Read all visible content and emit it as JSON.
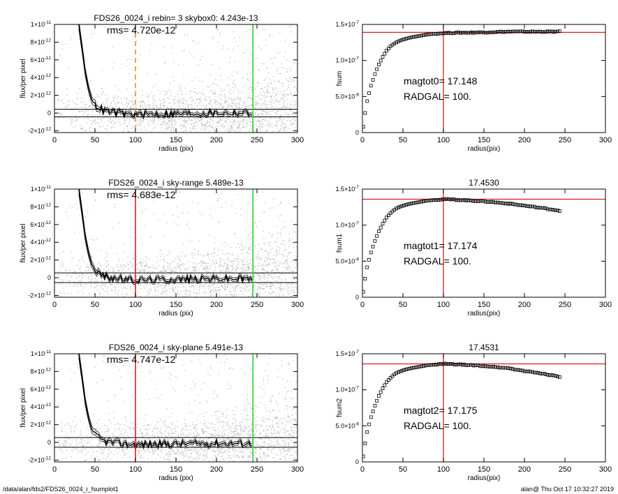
{
  "footer": {
    "path": "/data/alan/fds2/FDS26_0024_i_fsumplot1",
    "stamp": "alan@  Thu Oct 17 10:32:27 2019"
  },
  "colors": {
    "scatter": "#b3b3b3",
    "profile": "#000000",
    "orange": "#f28c28",
    "red": "#e41a1c",
    "green": "#2bd32b",
    "marker": "#000000"
  },
  "chart_data": [
    {
      "id": "flux-top",
      "type": "scatter",
      "title": "FDS26_0024_i rebin= 3    skybox0:  4.243e-13",
      "annotation": "rms= 4.720e-12",
      "xlabel": "radius (pix)",
      "ylabel": "flux/per pixel",
      "xlim": [
        0,
        300
      ],
      "ylim": [
        -2.2e-12,
        1e-11
      ],
      "xticks": [
        0,
        50,
        100,
        150,
        200,
        250,
        300
      ],
      "yticks": [
        {
          "v": 1e-11,
          "m": "1×10",
          "e": "-11"
        },
        {
          "v": 8e-12,
          "m": "8×10",
          "e": "-12"
        },
        {
          "v": 6e-12,
          "m": "6×10",
          "e": "-12"
        },
        {
          "v": 4e-12,
          "m": "4×10",
          "e": "-12"
        },
        {
          "v": 2e-12,
          "m": "2×10",
          "e": "-12"
        },
        {
          "v": 0,
          "m": "0",
          "e": ""
        },
        {
          "v": -2e-12,
          "m": "-2×10",
          "e": "-12"
        }
      ],
      "hlines": [
        4.243e-13,
        -4.243e-13
      ],
      "vlines": [
        {
          "x": 100,
          "color": "orange",
          "dash": true
        },
        {
          "x": 245,
          "color": "green",
          "dash": false
        }
      ],
      "profile": {
        "x": [
          30,
          34,
          38,
          42,
          46,
          50,
          55,
          60,
          70,
          80,
          90,
          100,
          120,
          150,
          200,
          245
        ],
        "y": [
          1e-11,
          7.4e-12,
          4.6e-12,
          2.8e-12,
          1.5e-12,
          9e-13,
          6e-13,
          3e-13,
          1e-13,
          0,
          -1e-13,
          -1.5e-13,
          -1e-13,
          -1e-13,
          0,
          0
        ]
      },
      "scatter_seed": 11
    },
    {
      "id": "fsum-top",
      "type": "scatter",
      "title": "",
      "annotation": "magtot0=  17.148",
      "annotation2": "RADGAL=    100.",
      "xlabel": "radius(pix)",
      "ylabel": "fsum",
      "xlim": [
        0,
        300
      ],
      "ylim": [
        0,
        1.5e-07
      ],
      "xticks": [
        0,
        50,
        100,
        150,
        200,
        250,
        300
      ],
      "yticks": [
        {
          "v": 1.5e-07,
          "m": "1.5×10",
          "e": "-7"
        },
        {
          "v": 1e-07,
          "m": "1.0×10",
          "e": "-7"
        },
        {
          "v": 5e-08,
          "m": "5.0×10",
          "e": "-8"
        },
        {
          "v": 0,
          "m": "0",
          "e": ""
        }
      ],
      "hline": 1.39e-07,
      "vline": 100,
      "curve": {
        "x": [
          0,
          5,
          10,
          15,
          20,
          25,
          30,
          35,
          40,
          45,
          50,
          60,
          70,
          80,
          90,
          100,
          120,
          150,
          180,
          200,
          220,
          245
        ],
        "y": [
          0,
          4e-08,
          6.3e-08,
          8e-08,
          9.4e-08,
          1.05e-07,
          1.14e-07,
          1.2e-07,
          1.24e-07,
          1.27e-07,
          1.29e-07,
          1.32e-07,
          1.34e-07,
          1.36e-07,
          1.37e-07,
          1.38e-07,
          1.385e-07,
          1.39e-07,
          1.4e-07,
          1.4e-07,
          1.4e-07,
          1.4e-07
        ]
      }
    },
    {
      "id": "flux-mid",
      "type": "scatter",
      "title": "FDS26_0024_i sky-range  5.489e-13",
      "annotation": "rms= 4.683e-12",
      "xlabel": "radius (pix)",
      "ylabel": "flux/per pixel",
      "xlim": [
        0,
        300
      ],
      "ylim": [
        -2.2e-12,
        1e-11
      ],
      "xticks": [
        0,
        50,
        100,
        150,
        200,
        250,
        300
      ],
      "yticks": [
        {
          "v": 1e-11,
          "m": "1×10",
          "e": "-11"
        },
        {
          "v": 8e-12,
          "m": "8×10",
          "e": "-12"
        },
        {
          "v": 6e-12,
          "m": "6×10",
          "e": "-12"
        },
        {
          "v": 4e-12,
          "m": "4×10",
          "e": "-12"
        },
        {
          "v": 2e-12,
          "m": "2×10",
          "e": "-12"
        },
        {
          "v": 0,
          "m": "0",
          "e": ""
        },
        {
          "v": -2e-12,
          "m": "-2×10",
          "e": "-12"
        }
      ],
      "hlines": [
        5.489e-13,
        -5.489e-13
      ],
      "vlines": [
        {
          "x": 100,
          "color": "red",
          "dash": false
        },
        {
          "x": 245,
          "color": "green",
          "dash": false
        }
      ],
      "profile": {
        "x": [
          30,
          34,
          38,
          42,
          46,
          50,
          55,
          60,
          70,
          80,
          90,
          100,
          120,
          150,
          200,
          245
        ],
        "y": [
          1e-11,
          7.4e-12,
          4.6e-12,
          2.8e-12,
          1.5e-12,
          9e-13,
          5e-13,
          2e-13,
          0,
          -1e-13,
          -2e-13,
          -2.5e-13,
          -2e-13,
          -1.5e-13,
          -1e-13,
          -1e-13
        ]
      },
      "scatter_seed": 23
    },
    {
      "id": "fsum-mid",
      "type": "scatter",
      "title": "17.4530",
      "annotation": "magtot1=  17.174",
      "annotation2": "RADGAL=    100.",
      "xlabel": "radius(pix)",
      "ylabel": "fsum1",
      "xlim": [
        0,
        300
      ],
      "ylim": [
        0,
        1.5e-07
      ],
      "xticks": [
        0,
        50,
        100,
        150,
        200,
        250,
        300
      ],
      "yticks": [
        {
          "v": 1.5e-07,
          "m": "1.5×10",
          "e": "-7"
        },
        {
          "v": 1e-07,
          "m": "1.0×10",
          "e": "-7"
        },
        {
          "v": 5e-08,
          "m": "5.0×10",
          "e": "-8"
        },
        {
          "v": 0,
          "m": "0",
          "e": ""
        }
      ],
      "hline": 1.36e-07,
      "vline": 100,
      "curve": {
        "x": [
          0,
          5,
          10,
          15,
          20,
          25,
          30,
          35,
          40,
          45,
          50,
          60,
          70,
          80,
          90,
          100,
          120,
          150,
          180,
          200,
          220,
          245
        ],
        "y": [
          0,
          3.8e-08,
          6e-08,
          7.7e-08,
          9.1e-08,
          1.02e-07,
          1.11e-07,
          1.17e-07,
          1.22e-07,
          1.25e-07,
          1.27e-07,
          1.3e-07,
          1.32e-07,
          1.34e-07,
          1.35e-07,
          1.36e-07,
          1.35e-07,
          1.33e-07,
          1.3e-07,
          1.27e-07,
          1.24e-07,
          1.2e-07
        ]
      }
    },
    {
      "id": "flux-bot",
      "type": "scatter",
      "title": "FDS26_0024_i sky-plane  5.491e-13",
      "annotation": "rms= 4.747e-12",
      "xlabel": "radius (pix)",
      "ylabel": "flux/per pixel",
      "xlim": [
        0,
        300
      ],
      "ylim": [
        -2.2e-12,
        1e-11
      ],
      "xticks": [
        0,
        50,
        100,
        150,
        200,
        250,
        300
      ],
      "yticks": [
        {
          "v": 1e-11,
          "m": "1×10",
          "e": "-11"
        },
        {
          "v": 8e-12,
          "m": "8×10",
          "e": "-12"
        },
        {
          "v": 6e-12,
          "m": "6×10",
          "e": "-12"
        },
        {
          "v": 4e-12,
          "m": "4×10",
          "e": "-12"
        },
        {
          "v": 2e-12,
          "m": "2×10",
          "e": "-12"
        },
        {
          "v": 0,
          "m": "0",
          "e": ""
        },
        {
          "v": -2e-12,
          "m": "-2×10",
          "e": "-12"
        }
      ],
      "hlines": [
        5.491e-13,
        -5.491e-13
      ],
      "vlines": [
        {
          "x": 100,
          "color": "red",
          "dash": false
        },
        {
          "x": 245,
          "color": "green",
          "dash": false
        }
      ],
      "profile": {
        "x": [
          30,
          34,
          38,
          42,
          46,
          50,
          55,
          60,
          70,
          80,
          90,
          100,
          120,
          150,
          200,
          245
        ],
        "y": [
          1e-11,
          7.4e-12,
          4.6e-12,
          2.8e-12,
          1.5e-12,
          9e-13,
          5e-13,
          2e-13,
          0,
          -1e-13,
          -2e-13,
          -2.5e-13,
          -2e-13,
          -1.5e-13,
          -1e-13,
          -1e-13
        ]
      },
      "scatter_seed": 37
    },
    {
      "id": "fsum-bot",
      "type": "scatter",
      "title": "17.4531",
      "annotation": "magtot2=  17.175",
      "annotation2": "RADGAL=    100.",
      "xlabel": "radius(pix)",
      "ylabel": "fsum2",
      "xlim": [
        0,
        300
      ],
      "ylim": [
        0,
        1.5e-07
      ],
      "xticks": [
        0,
        50,
        100,
        150,
        200,
        250,
        300
      ],
      "yticks": [
        {
          "v": 1.5e-07,
          "m": "1.5×10",
          "e": "-7"
        },
        {
          "v": 1e-07,
          "m": "1.0×10",
          "e": "-7"
        },
        {
          "v": 5e-08,
          "m": "5.0×10",
          "e": "-8"
        },
        {
          "v": 0,
          "m": "0",
          "e": ""
        }
      ],
      "hline": 1.36e-07,
      "vline": 100,
      "curve": {
        "x": [
          0,
          5,
          10,
          15,
          20,
          25,
          30,
          35,
          40,
          45,
          50,
          60,
          70,
          80,
          90,
          100,
          120,
          150,
          180,
          200,
          220,
          245
        ],
        "y": [
          0,
          3.8e-08,
          6e-08,
          7.7e-08,
          9.1e-08,
          1.02e-07,
          1.11e-07,
          1.17e-07,
          1.22e-07,
          1.25e-07,
          1.27e-07,
          1.3e-07,
          1.32e-07,
          1.34e-07,
          1.35e-07,
          1.36e-07,
          1.35e-07,
          1.33e-07,
          1.3e-07,
          1.26e-07,
          1.23e-07,
          1.18e-07
        ]
      }
    }
  ]
}
